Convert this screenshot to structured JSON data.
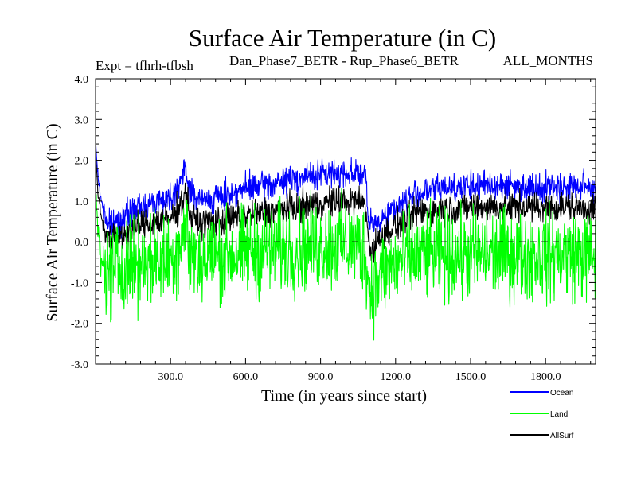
{
  "header": {
    "title": "Surface Air Temperature (in C)",
    "expt": "Expt = tfhrh-tfbsh",
    "comparison": "Dan_Phase7_BETR - Rup_Phase6_BETR",
    "months": "ALL_MONTHS"
  },
  "chart_data": {
    "type": "line",
    "title": "Surface Air Temperature (in C)",
    "xlabel": "Time (in years since start)",
    "ylabel": "Surface Air Temperature (in C)",
    "xlim": [
      0,
      2000
    ],
    "ylim": [
      -3.0,
      4.0
    ],
    "x_ticks": [
      {
        "value": 300,
        "label": "300.0"
      },
      {
        "value": 600,
        "label": "600.0"
      },
      {
        "value": 900,
        "label": "900.0"
      },
      {
        "value": 1200,
        "label": "1200.0"
      },
      {
        "value": 1500,
        "label": "1500.0"
      },
      {
        "value": 1800,
        "label": "1800.0"
      }
    ],
    "y_ticks": [
      {
        "value": 4.0,
        "label": "4.0"
      },
      {
        "value": 3.0,
        "label": "3.0"
      },
      {
        "value": 2.0,
        "label": "2.0"
      },
      {
        "value": 1.0,
        "label": "1.0"
      },
      {
        "value": 0.0,
        "label": "0.0"
      },
      {
        "value": -1.0,
        "label": "-1.0"
      },
      {
        "value": -2.0,
        "label": "-2.0"
      },
      {
        "value": -3.0,
        "label": "-3.0"
      }
    ],
    "reference_line": {
      "y": 0.0,
      "style": "dashed"
    },
    "legend_position": "bottom-right",
    "series": [
      {
        "name": "Ocean",
        "color": "#0000ff",
        "draw_order": 1,
        "x": [
          0,
          10,
          20,
          40,
          60,
          100,
          150,
          200,
          250,
          300,
          330,
          360,
          380,
          420,
          500,
          600,
          700,
          800,
          900,
          1000,
          1050,
          1080,
          1090,
          1100,
          1130,
          1180,
          1250,
          1300,
          1400,
          1500,
          1600,
          1700,
          1800,
          1900,
          2000
        ],
        "mean": [
          2.4,
          1.6,
          1.1,
          0.6,
          0.4,
          0.55,
          0.75,
          0.9,
          1.0,
          1.1,
          1.4,
          1.75,
          1.2,
          1.0,
          1.1,
          1.3,
          1.4,
          1.55,
          1.65,
          1.7,
          1.7,
          1.6,
          0.6,
          0.35,
          0.5,
          0.75,
          1.05,
          1.2,
          1.35,
          1.35,
          1.4,
          1.35,
          1.35,
          1.35,
          1.35
        ],
        "noise": 0.3
      },
      {
        "name": "AllSurf",
        "color": "#000000",
        "draw_order": 2,
        "x": [
          0,
          10,
          20,
          40,
          60,
          100,
          150,
          200,
          250,
          300,
          330,
          360,
          380,
          420,
          500,
          600,
          700,
          800,
          900,
          1000,
          1050,
          1080,
          1090,
          1100,
          1130,
          1180,
          1250,
          1300,
          1400,
          1500,
          1600,
          1700,
          1800,
          1900,
          2000
        ],
        "mean": [
          2.2,
          1.2,
          0.7,
          0.25,
          0.1,
          0.15,
          0.3,
          0.45,
          0.5,
          0.55,
          0.8,
          1.2,
          0.6,
          0.45,
          0.5,
          0.65,
          0.75,
          0.85,
          0.95,
          1.0,
          1.0,
          0.95,
          0.1,
          -0.2,
          0.0,
          0.3,
          0.6,
          0.75,
          0.8,
          0.85,
          0.85,
          0.85,
          0.85,
          0.85,
          0.8
        ],
        "noise": 0.32
      },
      {
        "name": "Land",
        "color": "#00ff00",
        "draw_order": 3,
        "x": [
          0,
          10,
          20,
          40,
          60,
          100,
          150,
          200,
          250,
          300,
          330,
          360,
          380,
          420,
          500,
          600,
          700,
          800,
          900,
          1000,
          1050,
          1080,
          1090,
          1100,
          1130,
          1180,
          1250,
          1300,
          1400,
          1500,
          1600,
          1700,
          1800,
          1900,
          2000
        ],
        "mean": [
          1.4,
          0.3,
          -0.5,
          -0.7,
          -0.8,
          -0.6,
          -0.5,
          -0.45,
          -0.45,
          -0.4,
          -0.1,
          0.4,
          -0.3,
          -0.45,
          -0.35,
          -0.25,
          -0.2,
          -0.15,
          -0.1,
          -0.05,
          -0.1,
          -0.2,
          -1.0,
          -1.2,
          -0.9,
          -0.6,
          -0.4,
          -0.35,
          -0.35,
          -0.3,
          -0.3,
          -0.3,
          -0.35,
          -0.3,
          -0.35
        ],
        "noise": 0.95
      }
    ]
  }
}
